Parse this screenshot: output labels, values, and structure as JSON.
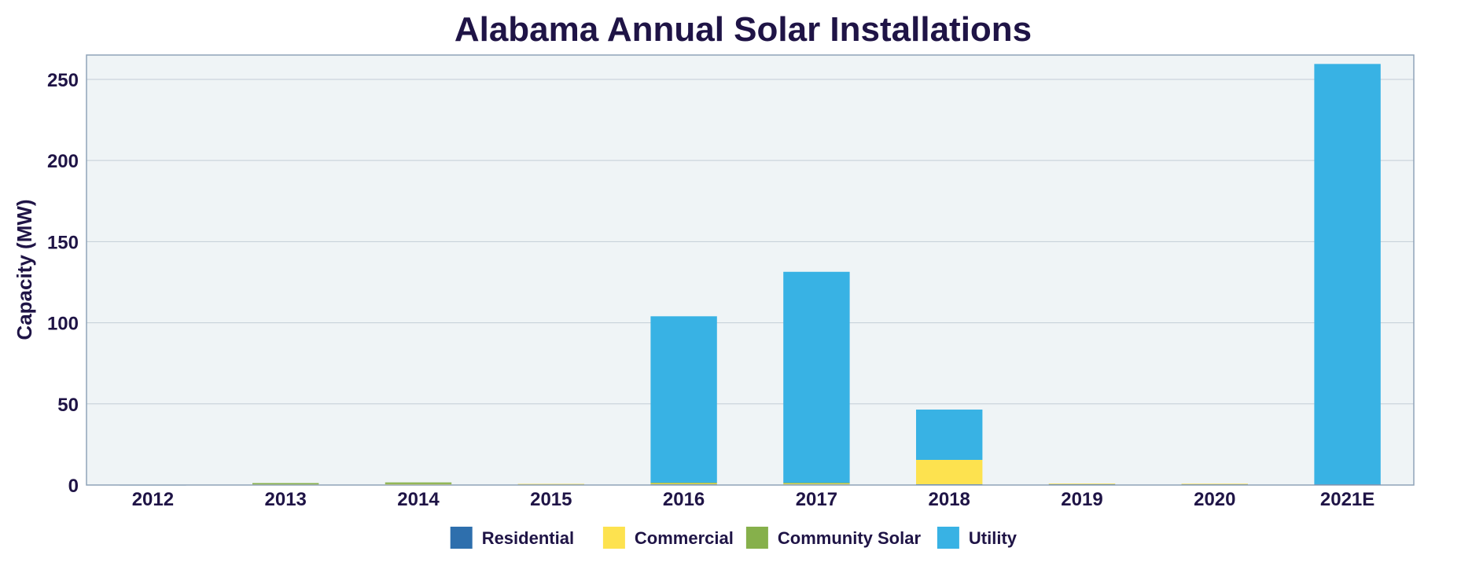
{
  "chart_data": {
    "type": "bar",
    "stacked": true,
    "title": "Alabama Annual Solar Installations",
    "xlabel": "",
    "ylabel": "Capacity (MW)",
    "ylim": [
      0,
      265
    ],
    "yticks": [
      0,
      50,
      100,
      150,
      200,
      250
    ],
    "grid": true,
    "legend_position": "bottom-center",
    "categories": [
      "2012",
      "2013",
      "2014",
      "2015",
      "2016",
      "2017",
      "2018",
      "2019",
      "2020",
      "2021E"
    ],
    "series": [
      {
        "name": "Residential",
        "color": "#2e6fad",
        "values": [
          0.1,
          0.2,
          0.3,
          0.5,
          0.5,
          0.4,
          0.5,
          0.6,
          0.6,
          0.5
        ]
      },
      {
        "name": "Commercial",
        "color": "#fde24f",
        "values": [
          0.1,
          0.2,
          0.3,
          0.2,
          0.5,
          0.5,
          15.0,
          0.3,
          0.2,
          0.0
        ]
      },
      {
        "name": "Community Solar",
        "color": "#86b04b",
        "values": [
          0.0,
          0.8,
          1.0,
          0.0,
          0.5,
          0.5,
          0.0,
          0.0,
          0.0,
          0.0
        ]
      },
      {
        "name": "Utility",
        "color": "#38b2e4",
        "values": [
          0.0,
          0.0,
          0.0,
          0.0,
          102.5,
          130.0,
          31.0,
          0.0,
          0.0,
          259.0
        ]
      }
    ]
  },
  "colors": {
    "plot_background": "#eff4f6",
    "plot_border": "#8fa3b8",
    "grid": "#c3cdd6",
    "text": "#1f1446"
  }
}
